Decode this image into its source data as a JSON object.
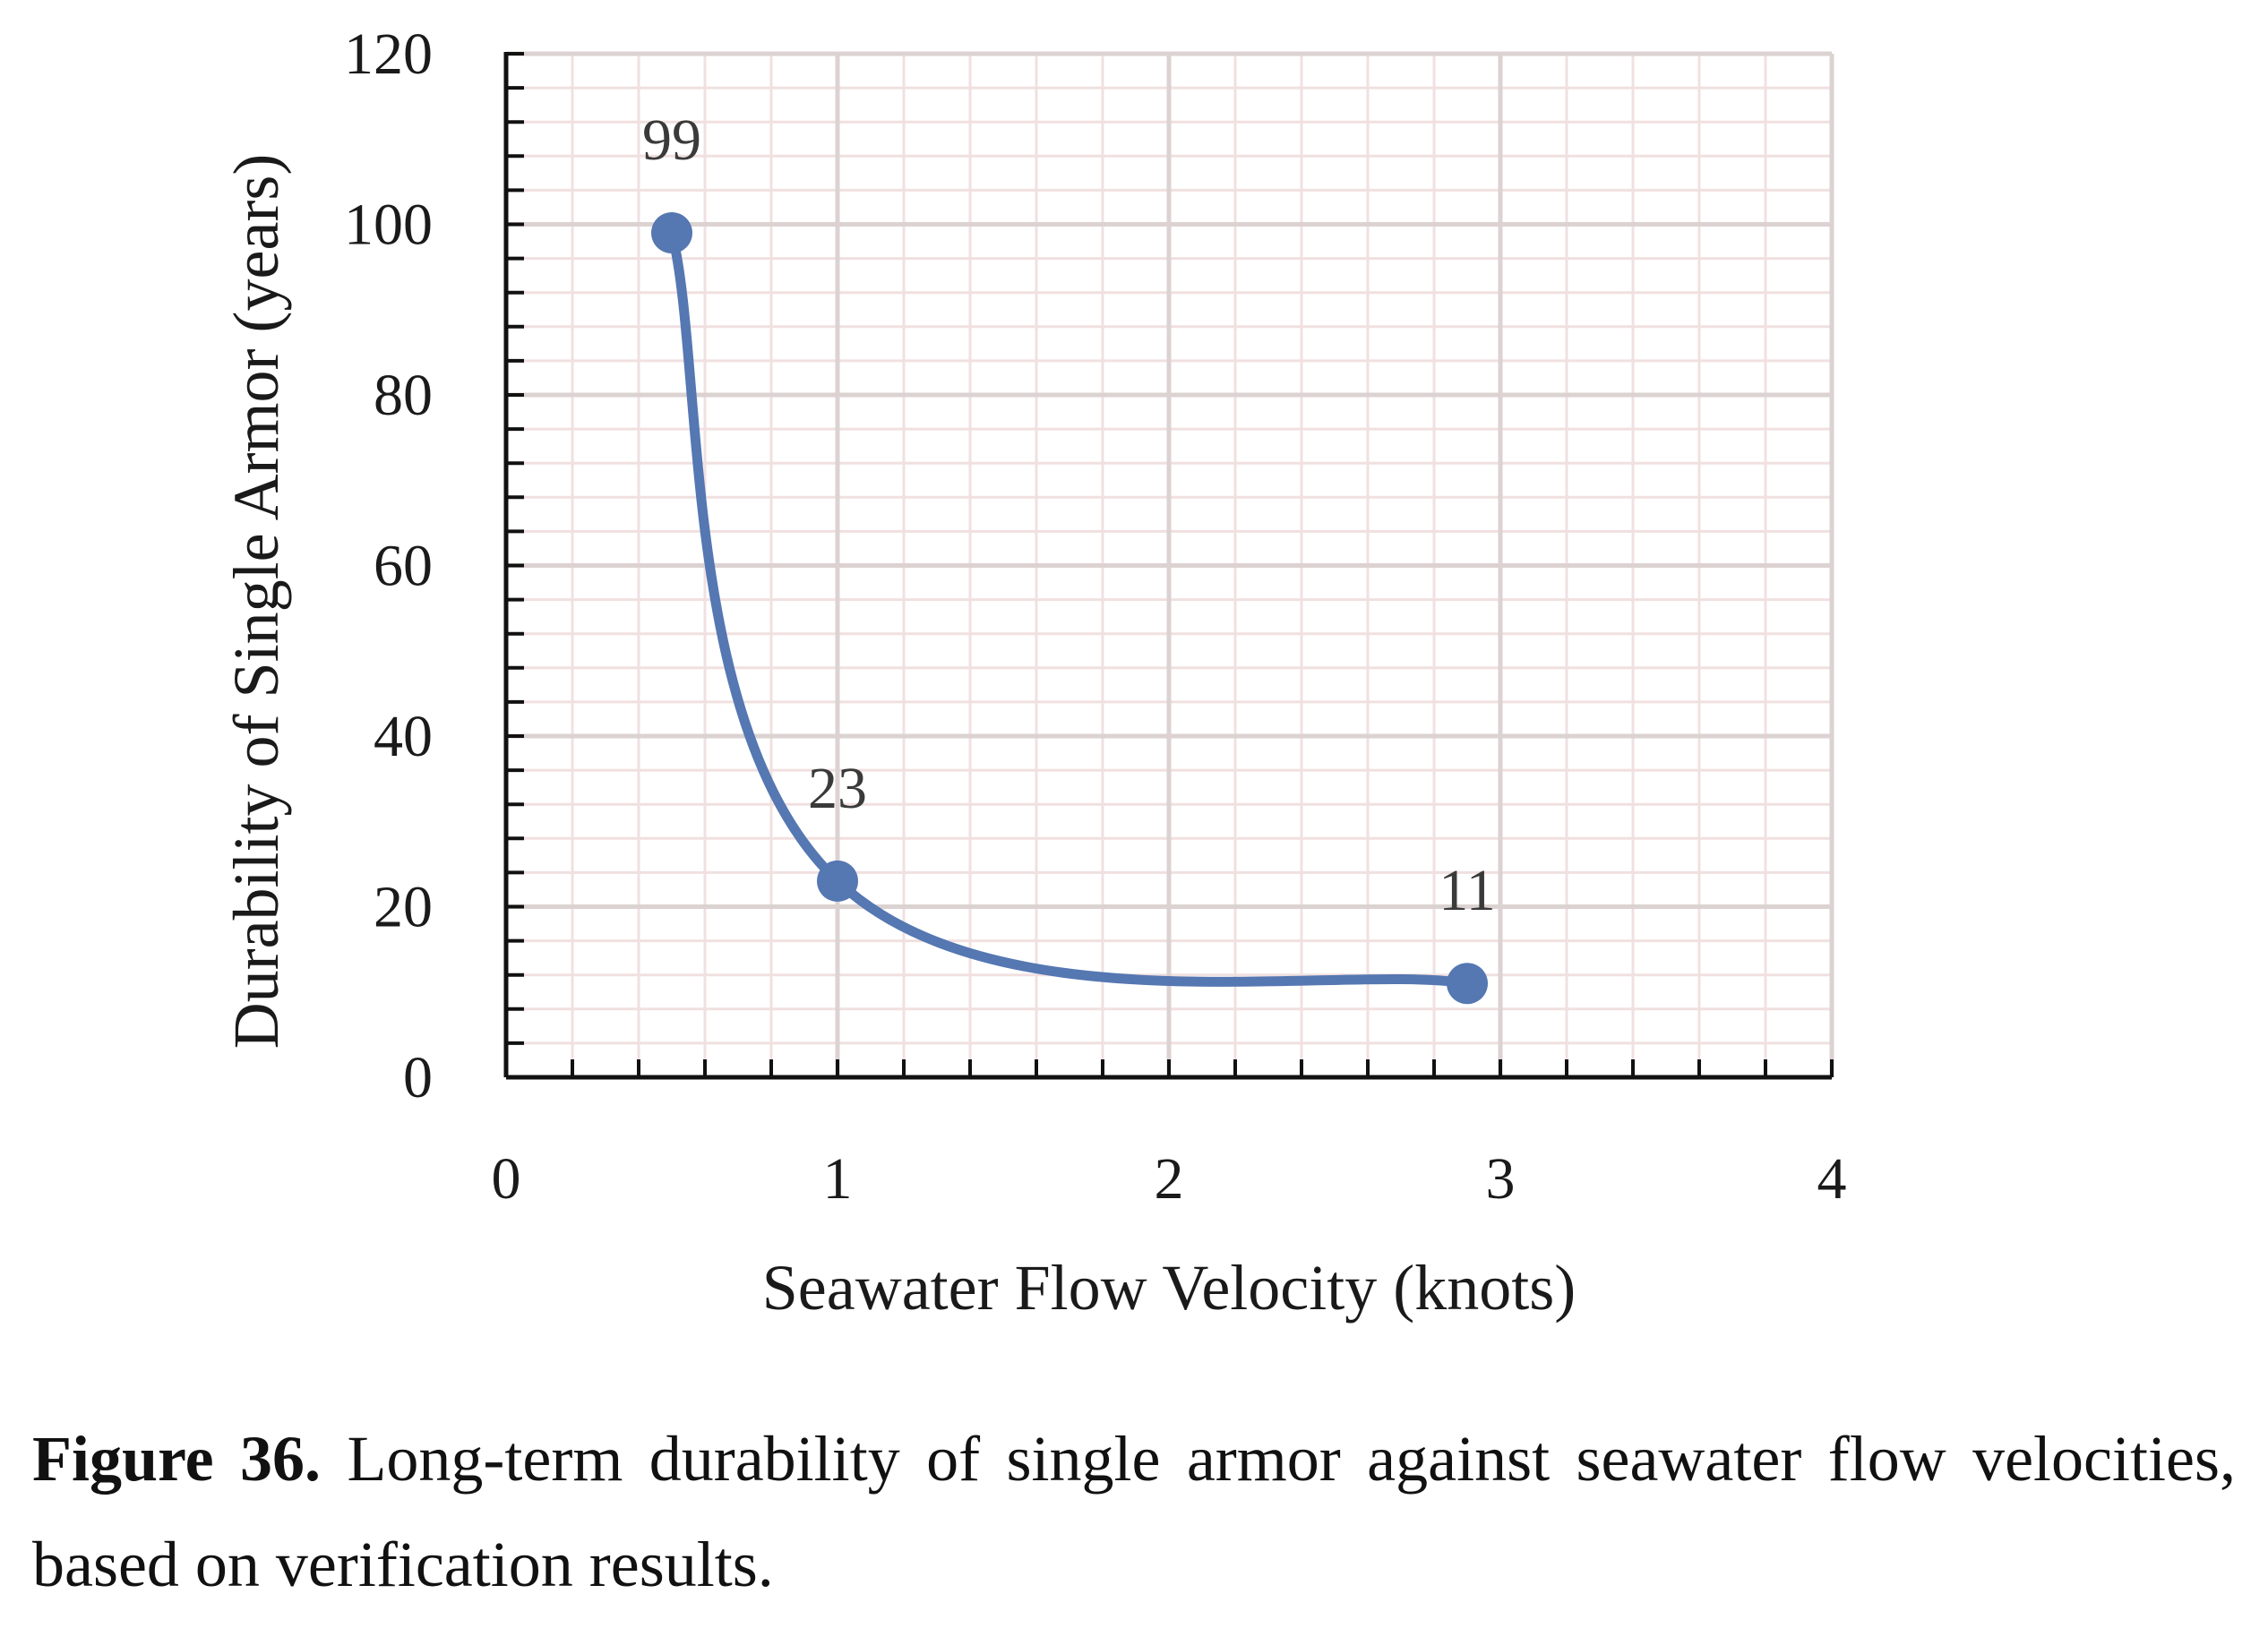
{
  "chart_data": {
    "type": "line",
    "smooth": true,
    "title": "",
    "xlabel": "Seawater Flow Velocity (knots)",
    "ylabel": "Durability of Single Armor (years)",
    "xlim": [
      0,
      4
    ],
    "ylim": [
      0,
      120
    ],
    "x_ticks": [
      0,
      1,
      2,
      3,
      4
    ],
    "y_ticks": [
      0,
      20,
      40,
      60,
      80,
      100,
      120
    ],
    "grid": true,
    "legend": "none",
    "series": [
      {
        "x": [
          0.5,
          1,
          2.9
        ],
        "values": [
          99,
          23,
          11
        ],
        "labels": [
          "99",
          "23",
          "11"
        ],
        "color": "#5577b2"
      }
    ]
  },
  "caption": {
    "label": "Figure 36.",
    "text": " Long-term durability of single armor against seawater flow velocities, based on verification results."
  }
}
